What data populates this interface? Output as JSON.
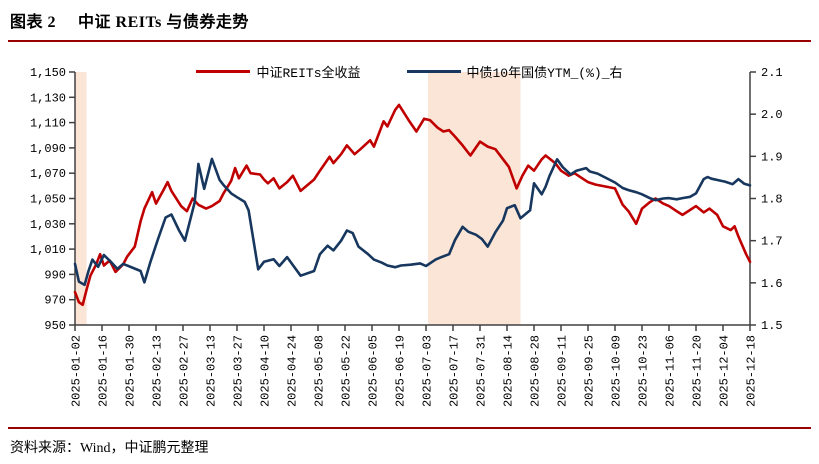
{
  "figure": {
    "label": "图表 2",
    "title": "中证 REITs 与债券走势"
  },
  "source": {
    "text": "资料来源：Wind，中证鹏元整理"
  },
  "colors": {
    "reits_line": "#c00000",
    "bond_line": "#17375e",
    "shaded_band": "#fbe5d6",
    "divider_rule": "#990000",
    "axis": "#404040",
    "label_text": "#000000"
  },
  "chart_data": {
    "type": "line",
    "title": "中证 REITs 与债券走势",
    "grid": false,
    "legend_position": "top",
    "x_axis": {
      "start": "2025-01-02",
      "end": "2025-12-18",
      "tick_labels": [
        "2025-01-02",
        "2025-01-16",
        "2025-01-30",
        "2025-02-13",
        "2025-02-27",
        "2025-03-13",
        "2025-03-27",
        "2025-04-10",
        "2025-04-24",
        "2025-05-08",
        "2025-05-22",
        "2025-06-05",
        "2025-06-19",
        "2025-07-03",
        "2025-07-17",
        "2025-07-31",
        "2025-08-14",
        "2025-08-28",
        "2025-09-11",
        "2025-09-25",
        "2025-10-09",
        "2025-10-23",
        "2025-11-06",
        "2025-11-20",
        "2025-12-04",
        "2025-12-18"
      ]
    },
    "left_axis": {
      "min": 950,
      "max": 1150,
      "step": 20,
      "tick_labels": [
        "1,150",
        "1,130",
        "1,110",
        "1,090",
        "1,070",
        "1,050",
        "1,030",
        "1,010",
        "990",
        "970",
        "950"
      ]
    },
    "right_axis": {
      "min": 1.5,
      "max": 2.1,
      "step": 0.1,
      "tick_labels": [
        "2.1",
        "2.0",
        "1.9",
        "1.8",
        "1.7",
        "1.6",
        "1.5"
      ]
    },
    "shaded_bands": [
      {
        "from": "2025-01-02",
        "to": "2025-01-08"
      },
      {
        "from": "2025-07-04",
        "to": "2025-08-21"
      }
    ],
    "series": [
      {
        "name": "中证REITs全收益",
        "axis": "left",
        "color": "#c00000",
        "points": [
          [
            "2025-01-02",
            976
          ],
          [
            "2025-01-04",
            968
          ],
          [
            "2025-01-06",
            966
          ],
          [
            "2025-01-08",
            978
          ],
          [
            "2025-01-10",
            989
          ],
          [
            "2025-01-13",
            998
          ],
          [
            "2025-01-15",
            1006
          ],
          [
            "2025-01-17",
            997
          ],
          [
            "2025-01-20",
            1001
          ],
          [
            "2025-01-23",
            992
          ],
          [
            "2025-01-27",
            998
          ],
          [
            "2025-01-29",
            1004
          ],
          [
            "2025-02-02",
            1012
          ],
          [
            "2025-02-05",
            1032
          ],
          [
            "2025-02-07",
            1042
          ],
          [
            "2025-02-11",
            1055
          ],
          [
            "2025-02-13",
            1046
          ],
          [
            "2025-02-17",
            1057
          ],
          [
            "2025-02-19",
            1063
          ],
          [
            "2025-02-21",
            1056
          ],
          [
            "2025-02-26",
            1044
          ],
          [
            "2025-03-01",
            1040
          ],
          [
            "2025-03-04",
            1050
          ],
          [
            "2025-03-07",
            1045
          ],
          [
            "2025-03-11",
            1042
          ],
          [
            "2025-03-14",
            1044
          ],
          [
            "2025-03-18",
            1048
          ],
          [
            "2025-03-20",
            1054
          ],
          [
            "2025-03-24",
            1064
          ],
          [
            "2025-03-26",
            1074
          ],
          [
            "2025-03-28",
            1066
          ],
          [
            "2025-04-01",
            1076
          ],
          [
            "2025-04-03",
            1070
          ],
          [
            "2025-04-08",
            1069
          ],
          [
            "2025-04-10",
            1065
          ],
          [
            "2025-04-12",
            1062
          ],
          [
            "2025-04-15",
            1066
          ],
          [
            "2025-04-18",
            1058
          ],
          [
            "2025-04-22",
            1063
          ],
          [
            "2025-04-25",
            1068
          ],
          [
            "2025-04-29",
            1056
          ],
          [
            "2025-05-06",
            1065
          ],
          [
            "2025-05-09",
            1072
          ],
          [
            "2025-05-14",
            1083
          ],
          [
            "2025-05-16",
            1078
          ],
          [
            "2025-05-20",
            1085
          ],
          [
            "2025-05-23",
            1092
          ],
          [
            "2025-05-27",
            1085
          ],
          [
            "2025-05-30",
            1089
          ],
          [
            "2025-06-04",
            1096
          ],
          [
            "2025-06-06",
            1091
          ],
          [
            "2025-06-11",
            1111
          ],
          [
            "2025-06-13",
            1107
          ],
          [
            "2025-06-17",
            1120
          ],
          [
            "2025-06-19",
            1124
          ],
          [
            "2025-06-24",
            1112
          ],
          [
            "2025-06-28",
            1103
          ],
          [
            "2025-07-02",
            1113
          ],
          [
            "2025-07-05",
            1112
          ],
          [
            "2025-07-09",
            1106
          ],
          [
            "2025-07-12",
            1103
          ],
          [
            "2025-07-15",
            1104
          ],
          [
            "2025-07-18",
            1099
          ],
          [
            "2025-07-22",
            1092
          ],
          [
            "2025-07-26",
            1084
          ],
          [
            "2025-07-31",
            1095
          ],
          [
            "2025-08-04",
            1091
          ],
          [
            "2025-08-08",
            1089
          ],
          [
            "2025-08-12",
            1081
          ],
          [
            "2025-08-15",
            1075
          ],
          [
            "2025-08-19",
            1058
          ],
          [
            "2025-08-22",
            1068
          ],
          [
            "2025-08-25",
            1076
          ],
          [
            "2025-08-28",
            1072
          ],
          [
            "2025-09-01",
            1081
          ],
          [
            "2025-09-03",
            1084
          ],
          [
            "2025-09-08",
            1078
          ],
          [
            "2025-09-11",
            1072
          ],
          [
            "2025-09-15",
            1068
          ],
          [
            "2025-09-18",
            1070
          ],
          [
            "2025-09-22",
            1066
          ],
          [
            "2025-09-25",
            1063
          ],
          [
            "2025-09-29",
            1061
          ],
          [
            "2025-10-09",
            1058
          ],
          [
            "2025-10-13",
            1045
          ],
          [
            "2025-10-16",
            1040
          ],
          [
            "2025-10-20",
            1030
          ],
          [
            "2025-10-23",
            1042
          ],
          [
            "2025-10-27",
            1047
          ],
          [
            "2025-10-30",
            1050
          ],
          [
            "2025-11-03",
            1046
          ],
          [
            "2025-11-06",
            1044
          ],
          [
            "2025-11-10",
            1040
          ],
          [
            "2025-11-13",
            1037
          ],
          [
            "2025-11-17",
            1041
          ],
          [
            "2025-11-20",
            1044
          ],
          [
            "2025-11-24",
            1039
          ],
          [
            "2025-11-27",
            1042
          ],
          [
            "2025-12-01",
            1037
          ],
          [
            "2025-12-04",
            1028
          ],
          [
            "2025-12-08",
            1025
          ],
          [
            "2025-12-10",
            1028
          ],
          [
            "2025-12-12",
            1020
          ],
          [
            "2025-12-16",
            1006
          ],
          [
            "2025-12-18",
            1000
          ]
        ]
      },
      {
        "name": "中债10年国债YTM_(%)_右",
        "axis": "right",
        "color": "#17375e",
        "points": [
          [
            "2025-01-02",
            1.645
          ],
          [
            "2025-01-04",
            1.603
          ],
          [
            "2025-01-07",
            1.595
          ],
          [
            "2025-01-09",
            1.628
          ],
          [
            "2025-01-11",
            1.655
          ],
          [
            "2025-01-14",
            1.638
          ],
          [
            "2025-01-17",
            1.666
          ],
          [
            "2025-01-21",
            1.648
          ],
          [
            "2025-01-24",
            1.633
          ],
          [
            "2025-01-27",
            1.645
          ],
          [
            "2025-02-05",
            1.628
          ],
          [
            "2025-02-07",
            1.601
          ],
          [
            "2025-02-10",
            1.648
          ],
          [
            "2025-02-14",
            1.703
          ],
          [
            "2025-02-18",
            1.755
          ],
          [
            "2025-02-21",
            1.762
          ],
          [
            "2025-02-25",
            1.724
          ],
          [
            "2025-02-28",
            1.7
          ],
          [
            "2025-03-05",
            1.79
          ],
          [
            "2025-03-07",
            1.882
          ],
          [
            "2025-03-10",
            1.823
          ],
          [
            "2025-03-14",
            1.894
          ],
          [
            "2025-03-18",
            1.844
          ],
          [
            "2025-03-20",
            1.832
          ],
          [
            "2025-03-24",
            1.812
          ],
          [
            "2025-03-27",
            1.803
          ],
          [
            "2025-03-31",
            1.792
          ],
          [
            "2025-04-02",
            1.772
          ],
          [
            "2025-04-07",
            1.632
          ],
          [
            "2025-04-10",
            1.65
          ],
          [
            "2025-04-15",
            1.656
          ],
          [
            "2025-04-18",
            1.64
          ],
          [
            "2025-04-22",
            1.661
          ],
          [
            "2025-04-25",
            1.642
          ],
          [
            "2025-04-29",
            1.617
          ],
          [
            "2025-05-06",
            1.628
          ],
          [
            "2025-05-09",
            1.668
          ],
          [
            "2025-05-13",
            1.688
          ],
          [
            "2025-05-16",
            1.677
          ],
          [
            "2025-05-20",
            1.7
          ],
          [
            "2025-05-23",
            1.724
          ],
          [
            "2025-05-26",
            1.718
          ],
          [
            "2025-05-29",
            1.686
          ],
          [
            "2025-06-03",
            1.668
          ],
          [
            "2025-06-06",
            1.655
          ],
          [
            "2025-06-10",
            1.648
          ],
          [
            "2025-06-13",
            1.641
          ],
          [
            "2025-06-17",
            1.637
          ],
          [
            "2025-06-20",
            1.641
          ],
          [
            "2025-06-25",
            1.643
          ],
          [
            "2025-06-30",
            1.646
          ],
          [
            "2025-07-03",
            1.64
          ],
          [
            "2025-07-08",
            1.655
          ],
          [
            "2025-07-11",
            1.661
          ],
          [
            "2025-07-15",
            1.668
          ],
          [
            "2025-07-18",
            1.701
          ],
          [
            "2025-07-22",
            1.733
          ],
          [
            "2025-07-25",
            1.721
          ],
          [
            "2025-07-29",
            1.714
          ],
          [
            "2025-08-01",
            1.704
          ],
          [
            "2025-08-04",
            1.686
          ],
          [
            "2025-08-08",
            1.72
          ],
          [
            "2025-08-12",
            1.748
          ],
          [
            "2025-08-14",
            1.777
          ],
          [
            "2025-08-18",
            1.784
          ],
          [
            "2025-08-21",
            1.753
          ],
          [
            "2025-08-26",
            1.772
          ],
          [
            "2025-08-28",
            1.836
          ],
          [
            "2025-09-01",
            1.81
          ],
          [
            "2025-09-03",
            1.828
          ],
          [
            "2025-09-05",
            1.853
          ],
          [
            "2025-09-09",
            1.893
          ],
          [
            "2025-09-12",
            1.874
          ],
          [
            "2025-09-16",
            1.857
          ],
          [
            "2025-09-19",
            1.866
          ],
          [
            "2025-09-24",
            1.872
          ],
          [
            "2025-09-26",
            1.864
          ],
          [
            "2025-09-30",
            1.859
          ],
          [
            "2025-10-09",
            1.838
          ],
          [
            "2025-10-13",
            1.825
          ],
          [
            "2025-10-16",
            1.82
          ],
          [
            "2025-10-20",
            1.815
          ],
          [
            "2025-10-23",
            1.81
          ],
          [
            "2025-10-27",
            1.801
          ],
          [
            "2025-10-30",
            1.796
          ],
          [
            "2025-11-03",
            1.8
          ],
          [
            "2025-11-06",
            1.801
          ],
          [
            "2025-11-10",
            1.798
          ],
          [
            "2025-11-13",
            1.801
          ],
          [
            "2025-11-17",
            1.804
          ],
          [
            "2025-11-20",
            1.812
          ],
          [
            "2025-11-24",
            1.846
          ],
          [
            "2025-11-26",
            1.851
          ],
          [
            "2025-11-28",
            1.847
          ],
          [
            "2025-12-02",
            1.843
          ],
          [
            "2025-12-05",
            1.84
          ],
          [
            "2025-12-09",
            1.834
          ],
          [
            "2025-12-12",
            1.846
          ],
          [
            "2025-12-15",
            1.835
          ],
          [
            "2025-12-18",
            1.831
          ]
        ]
      }
    ]
  }
}
